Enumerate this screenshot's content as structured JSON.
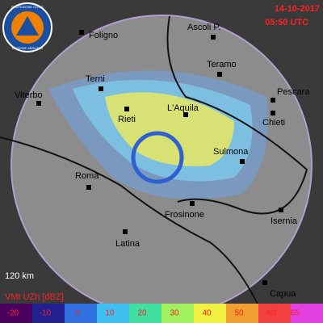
{
  "header": {
    "date": "14-10-2017",
    "time": "05:50 UTC"
  },
  "logo": {
    "top": "PROTEZIONE CIVILE",
    "bottom": "REGIONE ABRUZZO"
  },
  "cities": [
    {
      "label": "Foligno"
    },
    {
      "label": "Ascoli P."
    },
    {
      "label": "Teramo"
    },
    {
      "label": "Pescara"
    },
    {
      "label": "Terni"
    },
    {
      "label": "Viterbo"
    },
    {
      "label": "Rieti"
    },
    {
      "label": "L'Aquila"
    },
    {
      "label": "Chieti"
    },
    {
      "label": "Sulmona"
    },
    {
      "label": "Roma"
    },
    {
      "label": "Frosinone"
    },
    {
      "label": "Isernia"
    },
    {
      "label": "Latina"
    },
    {
      "label": "Capua"
    }
  ],
  "range_label": "120 km",
  "legend": {
    "title": "VMI UZh [dBZ]",
    "ticks": [
      "-20",
      "-10",
      "0",
      "10",
      "20",
      "30",
      "40",
      "50",
      "60",
      "65"
    ]
  }
}
